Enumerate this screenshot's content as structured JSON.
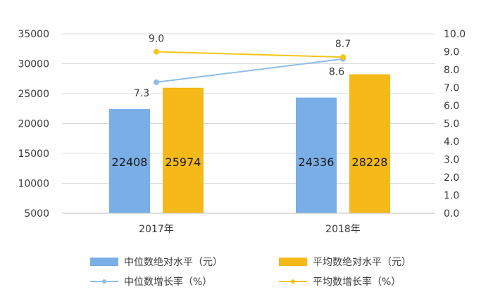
{
  "chart_data": {
    "type": "bar",
    "categories": [
      "2017年",
      "2018年"
    ],
    "series": [
      {
        "name": "中位数绝对水平（元）",
        "kind": "bar",
        "axis": "left",
        "color": "#7aaee6",
        "values": [
          22408,
          24336
        ]
      },
      {
        "name": "平均数绝对水平（元）",
        "kind": "bar",
        "axis": "left",
        "color": "#f5b919",
        "values": [
          25974,
          28228
        ]
      },
      {
        "name": "中位数增长率（%）",
        "kind": "line",
        "axis": "right",
        "color": "#8fbde6",
        "values": [
          7.3,
          8.6
        ]
      },
      {
        "name": "平均数增长率（%）",
        "kind": "line",
        "axis": "right",
        "color": "#f5c518",
        "values": [
          9.0,
          8.7
        ]
      }
    ],
    "y_left": {
      "min": 5000,
      "max": 35000,
      "ticks": [
        "5000",
        "10000",
        "15000",
        "20000",
        "25000",
        "30000",
        "35000"
      ]
    },
    "y_right": {
      "min": 0,
      "max": 10,
      "ticks": [
        "0.0",
        "1.0",
        "2.0",
        "3.0",
        "4.0",
        "5.0",
        "6.0",
        "7.0",
        "8.0",
        "9.0",
        "10.0"
      ]
    },
    "bar_labels": [
      [
        "22408",
        "24336"
      ],
      [
        "25974",
        "28228"
      ]
    ],
    "line_labels": [
      [
        "7.3",
        "8.6"
      ],
      [
        "9.0",
        "8.7"
      ]
    ],
    "grid": true,
    "legend_position": "bottom"
  }
}
